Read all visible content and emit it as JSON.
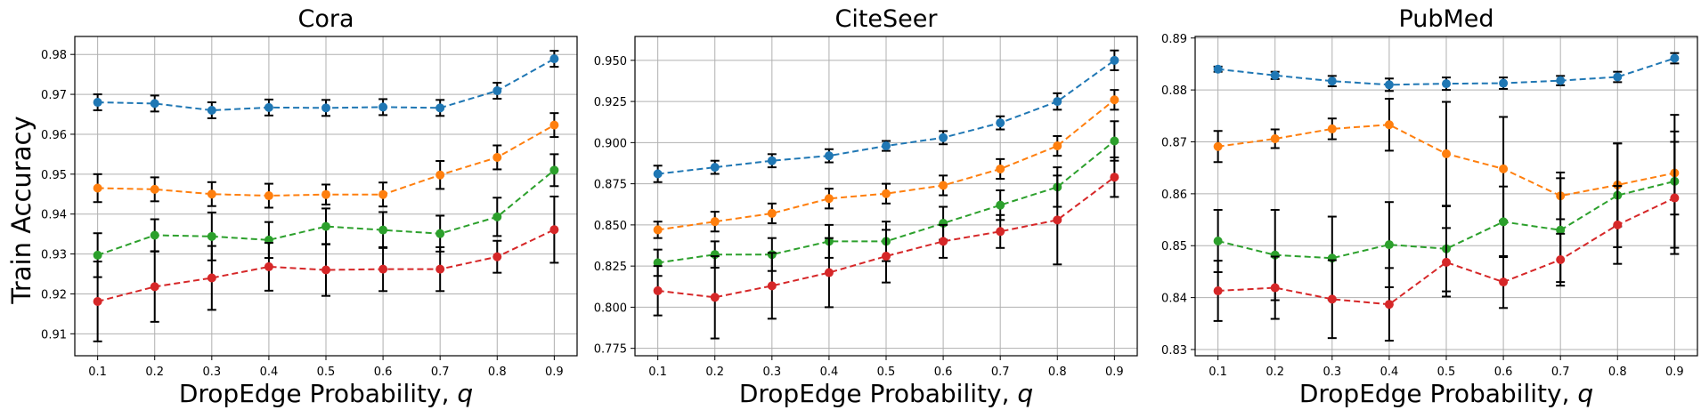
{
  "figure": {
    "ylabel": "Train Accuracy",
    "series_colors": [
      "#1f77b4",
      "#ff7f0e",
      "#2ca02c",
      "#d62728"
    ],
    "error_bar_color": "#000000"
  },
  "chart_data": [
    {
      "type": "line",
      "title": "Cora",
      "xlabel": "DropEdge Probability, q",
      "x": [
        0.1,
        0.2,
        0.3,
        0.4,
        0.5,
        0.6,
        0.7,
        0.8,
        0.9
      ],
      "xticks": [
        "0.1",
        "0.2",
        "0.3",
        "0.4",
        "0.5",
        "0.6",
        "0.7",
        "0.8",
        "0.9"
      ],
      "yticks": [
        "0.91",
        "0.92",
        "0.93",
        "0.94",
        "0.95",
        "0.96",
        "0.97",
        "0.98"
      ],
      "ylim": [
        0.9045,
        0.9845
      ],
      "grid": true,
      "series": [
        {
          "values": [
            0.968,
            0.9677,
            0.966,
            0.9667,
            0.9666,
            0.9668,
            0.9666,
            0.9709,
            0.9789
          ],
          "err": [
            0.002,
            0.002,
            0.002,
            0.002,
            0.002,
            0.002,
            0.002,
            0.002,
            0.002
          ]
        },
        {
          "values": [
            0.9465,
            0.9462,
            0.945,
            0.9446,
            0.9449,
            0.9449,
            0.9498,
            0.9542,
            0.9623
          ],
          "err": [
            0.0035,
            0.003,
            0.003,
            0.003,
            0.0025,
            0.003,
            0.0035,
            0.003,
            0.003
          ]
        },
        {
          "values": [
            0.9297,
            0.9347,
            0.9344,
            0.9335,
            0.9369,
            0.936,
            0.9351,
            0.9393,
            0.951
          ],
          "err": [
            0.0055,
            0.004,
            0.006,
            0.0045,
            0.0045,
            0.0045,
            0.0045,
            0.0048,
            0.004
          ]
        },
        {
          "values": [
            0.9181,
            0.9218,
            0.924,
            0.9268,
            0.926,
            0.9262,
            0.9262,
            0.9293,
            0.9361
          ],
          "err": [
            0.01,
            0.0088,
            0.008,
            0.006,
            0.0065,
            0.0055,
            0.0055,
            0.004,
            0.0083
          ]
        }
      ]
    },
    {
      "type": "line",
      "title": "CiteSeer",
      "xlabel": "DropEdge Probability, q",
      "x": [
        0.1,
        0.2,
        0.3,
        0.4,
        0.5,
        0.6,
        0.7,
        0.8,
        0.9
      ],
      "xticks": [
        "0.1",
        "0.2",
        "0.3",
        "0.4",
        "0.5",
        "0.6",
        "0.7",
        "0.8",
        "0.9"
      ],
      "yticks": [
        "0.775",
        "0.800",
        "0.825",
        "0.850",
        "0.875",
        "0.900",
        "0.925",
        "0.950"
      ],
      "ylim": [
        0.7705,
        0.9645
      ],
      "grid": true,
      "series": [
        {
          "values": [
            0.881,
            0.885,
            0.889,
            0.892,
            0.898,
            0.903,
            0.912,
            0.925,
            0.95
          ],
          "err": [
            0.005,
            0.004,
            0.004,
            0.004,
            0.003,
            0.004,
            0.004,
            0.005,
            0.006
          ]
        },
        {
          "values": [
            0.847,
            0.852,
            0.857,
            0.866,
            0.869,
            0.874,
            0.884,
            0.898,
            0.926
          ],
          "err": [
            0.005,
            0.006,
            0.006,
            0.006,
            0.006,
            0.006,
            0.006,
            0.006,
            0.006
          ]
        },
        {
          "values": [
            0.827,
            0.832,
            0.832,
            0.84,
            0.84,
            0.851,
            0.862,
            0.873,
            0.901
          ],
          "err": [
            0.008,
            0.008,
            0.01,
            0.01,
            0.012,
            0.01,
            0.009,
            0.012,
            0.012
          ]
        },
        {
          "values": [
            0.81,
            0.806,
            0.813,
            0.821,
            0.831,
            0.84,
            0.846,
            0.853,
            0.879
          ],
          "err": [
            0.015,
            0.025,
            0.02,
            0.021,
            0.016,
            0.01,
            0.01,
            0.027,
            0.012
          ]
        }
      ]
    },
    {
      "type": "line",
      "title": "PubMed",
      "xlabel": "DropEdge Probability, q",
      "x": [
        0.1,
        0.2,
        0.3,
        0.4,
        0.5,
        0.6,
        0.7,
        0.8,
        0.9
      ],
      "xticks": [
        "0.1",
        "0.2",
        "0.3",
        "0.4",
        "0.5",
        "0.6",
        "0.7",
        "0.8",
        "0.9"
      ],
      "yticks": [
        "0.83",
        "0.84",
        "0.85",
        "0.86",
        "0.87",
        "0.88",
        "0.89"
      ],
      "ylim": [
        0.8288,
        0.8903
      ],
      "grid": true,
      "series": [
        {
          "values": [
            0.884,
            0.8828,
            0.8817,
            0.881,
            0.8812,
            0.8813,
            0.8818,
            0.8825,
            0.8861
          ],
          "err": [
            0.0005,
            0.0007,
            0.001,
            0.0012,
            0.0012,
            0.0011,
            0.0009,
            0.001,
            0.001
          ]
        },
        {
          "values": [
            0.8691,
            0.8706,
            0.8725,
            0.8733,
            0.8677,
            0.8648,
            0.8596,
            0.8617,
            0.864
          ],
          "err": [
            0.003,
            0.0018,
            0.002,
            0.005,
            0.01,
            0.01,
            0.0045,
            0.008,
            0.008
          ]
        },
        {
          "values": [
            0.8509,
            0.8482,
            0.8476,
            0.8502,
            0.8494,
            0.8546,
            0.853,
            0.8597,
            0.8624
          ],
          "err": [
            0.006,
            0.0087,
            0.008,
            0.0082,
            0.0082,
            0.0068,
            0.01,
            0.01,
            0.0128
          ]
        },
        {
          "values": [
            0.8413,
            0.8419,
            0.8397,
            0.8387,
            0.8468,
            0.843,
            0.8473,
            0.854,
            0.8592
          ],
          "err": [
            0.0058,
            0.006,
            0.0075,
            0.007,
            0.0066,
            0.005,
            0.005,
            0.0075,
            0.0108
          ]
        }
      ]
    }
  ]
}
